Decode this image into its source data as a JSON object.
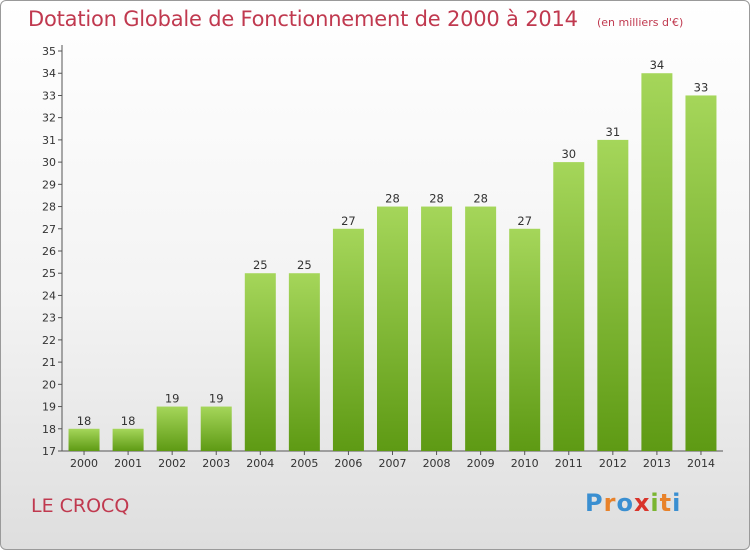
{
  "header": {
    "title": "Dotation Globale de Fonctionnement de 2000 à 2014",
    "subtitle": "(en milliers d'€)"
  },
  "footer": {
    "commune": "LE CROCQ",
    "logo": "Proxiti",
    "logo_colors": [
      "#3a8fd1",
      "#e8822a",
      "#3a8fd1",
      "#d9342b",
      "#7ab531",
      "#e8822a",
      "#3a8fd1"
    ]
  },
  "colors": {
    "bar_top": "#a5d65a",
    "bar_bottom": "#5e9a14",
    "title": "#c0394f"
  },
  "chart_data": {
    "type": "bar",
    "categories": [
      "2000",
      "2001",
      "2002",
      "2003",
      "2004",
      "2005",
      "2006",
      "2007",
      "2008",
      "2009",
      "2010",
      "2011",
      "2012",
      "2013",
      "2014"
    ],
    "values": [
      18,
      18,
      19,
      19,
      25,
      25,
      27,
      28,
      28,
      28,
      27,
      30,
      31,
      34,
      33
    ],
    "data_labels": [
      "18",
      "18",
      "19",
      "19",
      "25",
      "25",
      "27",
      "28",
      "28",
      "28",
      "27",
      "30",
      "31",
      "34",
      "33"
    ],
    "ylim": [
      17,
      35
    ],
    "yticks": [
      17,
      18,
      19,
      20,
      21,
      22,
      23,
      24,
      25,
      26,
      27,
      28,
      29,
      30,
      31,
      32,
      33,
      34,
      35
    ],
    "grid": false
  }
}
